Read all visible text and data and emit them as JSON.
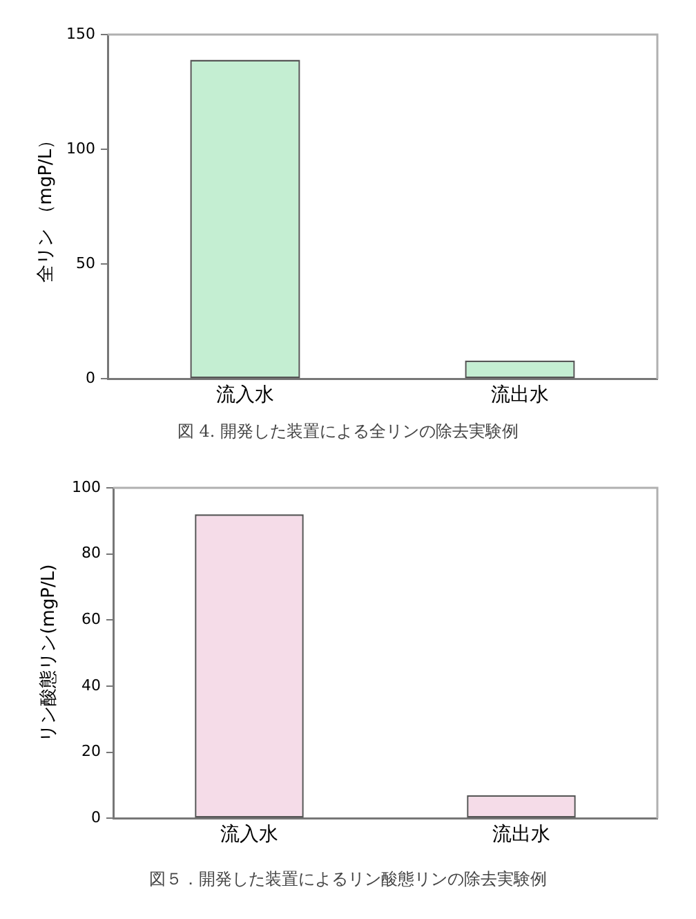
{
  "chart_data": [
    {
      "type": "bar",
      "categories": [
        "流入水",
        "流出水"
      ],
      "values": [
        139,
        8
      ],
      "color": "#c4eed2",
      "ylabel": "全リン （mgP/L）",
      "ylim": [
        0,
        150
      ],
      "yticks": [
        0,
        50,
        100,
        150
      ],
      "annotations": [
        "図 4. 開発した装置による全リンの除去実験例"
      ]
    },
    {
      "type": "bar",
      "categories": [
        "流入水",
        "流出水"
      ],
      "values": [
        92,
        7
      ],
      "color": "#f5dce8",
      "ylabel": "リン酸態リン(mgP/L)",
      "ylim": [
        0,
        100
      ],
      "yticks": [
        0,
        20,
        40,
        60,
        80,
        100
      ],
      "annotations": [
        "図５．開発した装置によるリン酸態リンの除去実験例"
      ]
    }
  ]
}
